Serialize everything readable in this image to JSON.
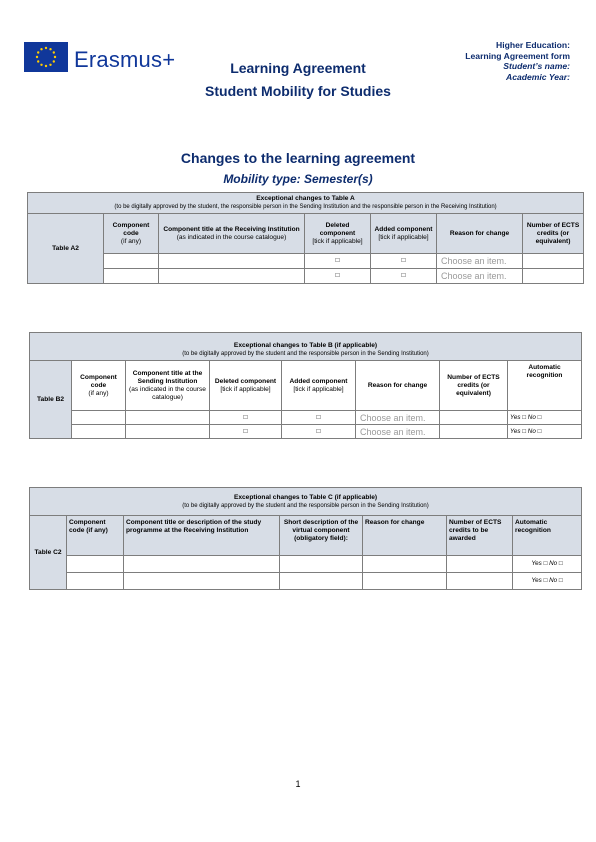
{
  "header": {
    "logo_text": "Erasmus+",
    "title_line1": "Learning Agreement",
    "title_line2": "Student Mobility for Studies",
    "right_line1": "Higher Education:",
    "right_line2": "Learning Agreement form",
    "right_line3": "Student’s name:",
    "right_line4": "Academic Year:"
  },
  "section": {
    "title": "Changes to the learning agreement",
    "subtitle": "Mobility type: Semester(s)"
  },
  "tableA": {
    "caption": "Exceptional changes to Table A",
    "sub_caption": "(to be digitally approved by the student, the responsible person in the Sending Institution and the responsible person in the Receiving Institution)",
    "label": "Table A2",
    "h_code_1": "Component code",
    "h_code_2": "(if any)",
    "h_title_1": "Component title at the Receiving Institution",
    "h_title_2": "(as indicated in the course catalogue)",
    "h_deleted_1": "Deleted component",
    "h_deleted_2": "[tick if applicable]",
    "h_added_1": "Added component",
    "h_added_2": "[tick if applicable]",
    "h_reason": "Reason for change",
    "h_ects": "Number of ECTS credits (or equivalent)",
    "checkbox": "□",
    "choose": "Choose an item."
  },
  "tableB": {
    "caption": "Exceptional changes to Table B (if applicable)",
    "sub_caption": "(to be digitally approved by the student and the responsible person in the Sending Institution)",
    "label": "Table B2",
    "h_code_1": "Component code",
    "h_code_2": "(if any)",
    "h_title_1": "Component title at the Sending Institution",
    "h_title_2": "(as indicated in the course catalogue)",
    "h_deleted_1": "Deleted component",
    "h_deleted_2": "[tick if applicable]",
    "h_added_1": "Added component",
    "h_added_2": "[tick if applicable]",
    "h_reason": "Reason for change",
    "h_ects": "Number of ECTS credits (or equivalent)",
    "h_auto": "Automatic recognition",
    "checkbox": "□",
    "choose": "Choose an item.",
    "yes_no": "Yes □     No □"
  },
  "tableC": {
    "caption": "Exceptional changes to Table C (if applicable)",
    "sub_caption": "(to be digitally approved by the student and the responsible person in the Sending Institution)",
    "label": "Table C2",
    "h_code": "Component code (if any)",
    "h_title": "Component title or description of the study programme  at the Receiving Institution",
    "h_short": "Short description of the virtual component (obligatory field):",
    "h_reason": "Reason for change",
    "h_ects": "Number of ECTS credits to be awarded",
    "h_auto": "Automatic recognition",
    "yes_no": "Yes □     No □"
  },
  "footer": {
    "page_number": "1"
  },
  "colors": {
    "navy": "#0d2c6e",
    "eu_blue": "#10379a",
    "eu_yellow": "#ffcc00",
    "shade": "#d7dde6"
  },
  "icons": {
    "logo": "eu-flag-icon"
  }
}
